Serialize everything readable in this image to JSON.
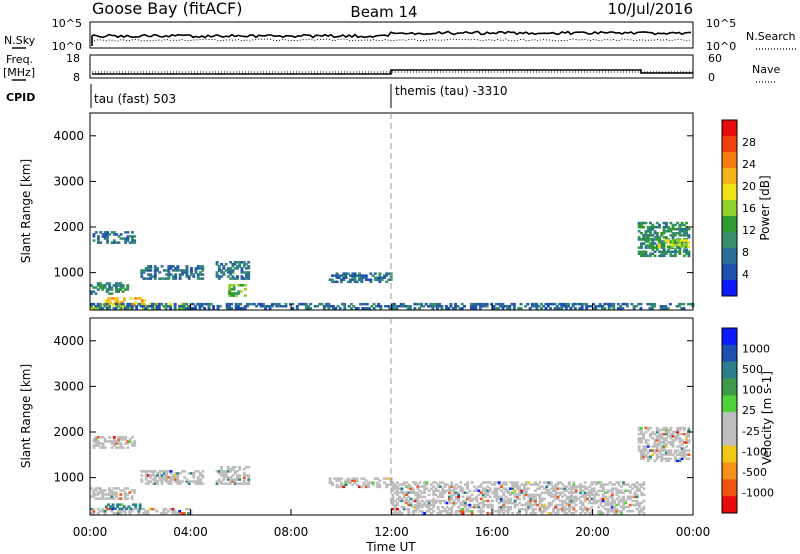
{
  "header": {
    "station": "Goose Bay (fitACF)",
    "beam": "Beam 14",
    "date": "10/Jul/2016"
  },
  "summary": {
    "sky_label": "N.Sky",
    "search_label": "N.Search",
    "sky_ticks": [
      "10^5",
      "10^0"
    ],
    "search_ticks": [
      "10^5",
      "10^0"
    ],
    "freq_label": "Freq.",
    "freq_unit": "[MHz]",
    "freq_ticks": [
      "18",
      "8"
    ],
    "nave_label": "Nave",
    "nave_ticks": [
      "60",
      "0"
    ],
    "cpid_label": "CPID",
    "cpid_segments": [
      {
        "label": "tau (fast) 503",
        "start_hour": 0
      },
      {
        "label": "themis (tau) -3310",
        "start_hour": 12
      }
    ]
  },
  "colors": {
    "power": [
      "#0a1aff",
      "#1f4fb0",
      "#2d6e96",
      "#3a8f6e",
      "#2f9a2f",
      "#8fd02a",
      "#f0e014",
      "#f5b51a",
      "#f57d10",
      "#f03e0c",
      "#e80b0b"
    ],
    "velocity": [
      "#e80b0b",
      "#f05510",
      "#f5901a",
      "#f0c814",
      "#bdbdbd",
      "#bdbdbd",
      "#4fd23a",
      "#3f9a4a",
      "#2a7f8a",
      "#1f4fb0",
      "#0a1aff"
    ]
  },
  "chart_data": [
    {
      "type": "heatmap",
      "title": "",
      "xlabel": "Time UT",
      "ylabel": "Slant Range [km]",
      "x_ticks": [
        "00:00",
        "04:00",
        "08:00",
        "12:00",
        "16:00",
        "20:00",
        "00:00"
      ],
      "xlim": [
        0,
        24
      ],
      "ylim": [
        180,
        4500
      ],
      "y_ticks": [
        1000,
        2000,
        3000,
        4000
      ],
      "colorbar": {
        "label": "Power [dB]",
        "range": [
          0,
          32
        ],
        "ticks": [
          "4",
          "8",
          "12",
          "16",
          "20",
          "24",
          "28"
        ]
      },
      "regions": [
        {
          "t": [
            0.0,
            4.0
          ],
          "r": [
            200,
            320
          ],
          "v": 16
        },
        {
          "t": [
            0.5,
            2.2
          ],
          "r": [
            280,
            420
          ],
          "v": 22
        },
        {
          "t": [
            0.0,
            1.5
          ],
          "r": [
            520,
            760
          ],
          "v": 9
        },
        {
          "t": [
            0.1,
            1.8
          ],
          "r": [
            1640,
            1880
          ],
          "v": 7
        },
        {
          "t": [
            2.0,
            4.5
          ],
          "r": [
            850,
            1150
          ],
          "v": 7
        },
        {
          "t": [
            5.0,
            6.3
          ],
          "r": [
            850,
            1250
          ],
          "v": 7
        },
        {
          "t": [
            5.5,
            6.2
          ],
          "r": [
            480,
            720
          ],
          "v": 13
        },
        {
          "t": [
            0.0,
            24.0
          ],
          "r": [
            200,
            330
          ],
          "v": 6
        },
        {
          "t": [
            9.5,
            12.0
          ],
          "r": [
            780,
            980
          ],
          "v": 7
        },
        {
          "t": [
            21.8,
            23.8
          ],
          "r": [
            1350,
            2100
          ],
          "v": 10
        },
        {
          "t": [
            22.6,
            23.8
          ],
          "r": [
            1550,
            1700
          ],
          "v": 16
        }
      ]
    },
    {
      "type": "heatmap",
      "title": "",
      "xlabel": "Time UT",
      "ylabel": "Slant Range [km]",
      "x_ticks": [
        "00:00",
        "04:00",
        "08:00",
        "12:00",
        "16:00",
        "20:00",
        "00:00"
      ],
      "xlim": [
        0,
        24
      ],
      "ylim": [
        180,
        4500
      ],
      "y_ticks": [
        1000,
        2000,
        3000,
        4000
      ],
      "colorbar": {
        "label": "Velocity [m s-1]",
        "ticks": [
          "1000",
          "500",
          "100",
          "25",
          "-25",
          "-100",
          "-500",
          "-1000"
        ]
      },
      "regions": [
        {
          "t": [
            0.0,
            4.0
          ],
          "r": [
            200,
            330
          ],
          "v": 0
        },
        {
          "t": [
            0.0,
            1.8
          ],
          "r": [
            520,
            760
          ],
          "v": 0
        },
        {
          "t": [
            0.1,
            1.8
          ],
          "r": [
            1640,
            1880
          ],
          "v": 0
        },
        {
          "t": [
            2.0,
            4.5
          ],
          "r": [
            850,
            1150
          ],
          "v": 0
        },
        {
          "t": [
            5.0,
            6.3
          ],
          "r": [
            850,
            1250
          ],
          "v": 0
        },
        {
          "t": [
            0.5,
            2.0
          ],
          "r": [
            300,
            420
          ],
          "v": 150
        },
        {
          "t": [
            9.5,
            12.0
          ],
          "r": [
            780,
            980
          ],
          "v": 0
        },
        {
          "t": [
            12.0,
            22.0
          ],
          "r": [
            200,
            900
          ],
          "v": 0
        },
        {
          "t": [
            21.8,
            23.8
          ],
          "r": [
            1350,
            2100
          ],
          "v": 0
        }
      ]
    }
  ]
}
